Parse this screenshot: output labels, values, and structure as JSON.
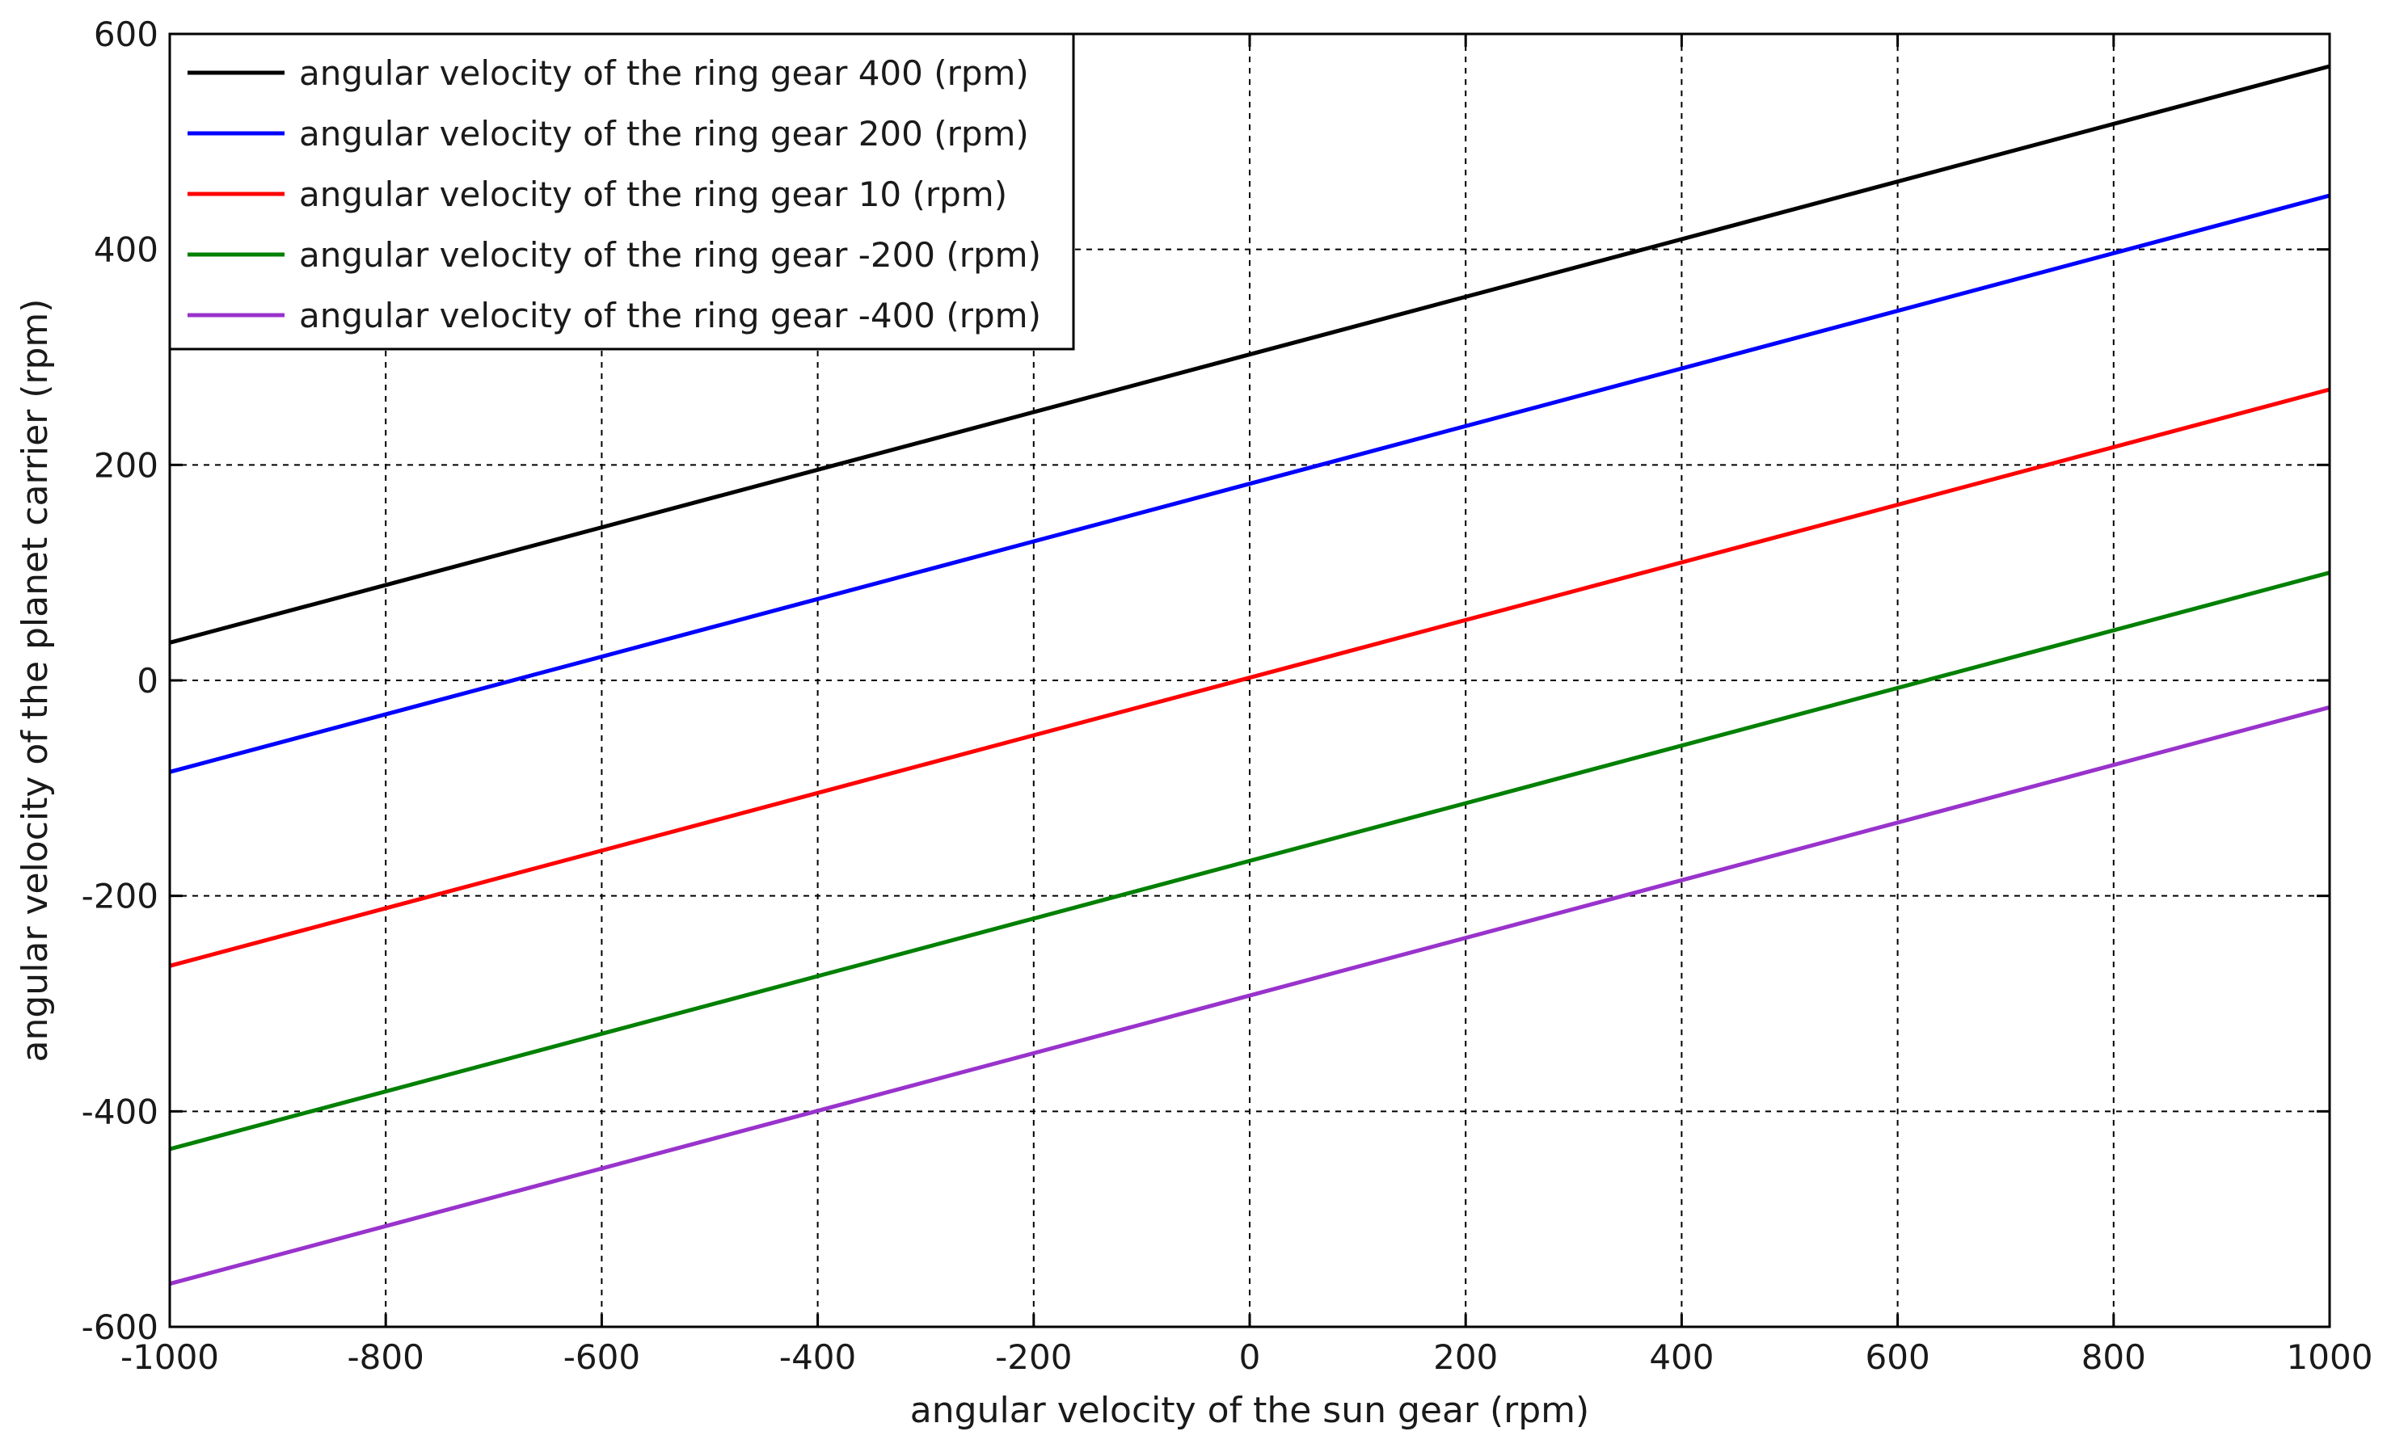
{
  "chart_data": {
    "type": "line",
    "xlabel": "angular velocity of the sun gear (rpm)",
    "ylabel": "angular velocity of the planet carrier (rpm)",
    "xlim": [
      -1000,
      1000
    ],
    "ylim": [
      -600,
      600
    ],
    "xticks": [
      -1000,
      -800,
      -600,
      -400,
      -200,
      0,
      200,
      400,
      600,
      800,
      1000
    ],
    "yticks": [
      -600,
      -400,
      -200,
      0,
      200,
      400,
      600
    ],
    "grid": true,
    "legend_position": "top-left",
    "x": [
      -1000,
      1000
    ],
    "series": [
      {
        "name": "angular velocity of the ring gear 400 (rpm)",
        "color": "#000000",
        "values": [
          35,
          570
        ]
      },
      {
        "name": "angular velocity of the ring gear 200 (rpm)",
        "color": "#0000ff",
        "values": [
          -85,
          450
        ]
      },
      {
        "name": "angular velocity of the ring gear 10 (rpm)",
        "color": "#ff0000",
        "values": [
          -265,
          270
        ]
      },
      {
        "name": "angular velocity of the ring gear -200 (rpm)",
        "color": "#008000",
        "values": [
          -435,
          100
        ]
      },
      {
        "name": "angular velocity of the ring gear -400 (rpm)",
        "color": "#9933cc",
        "values": [
          -560,
          -25
        ]
      }
    ]
  }
}
